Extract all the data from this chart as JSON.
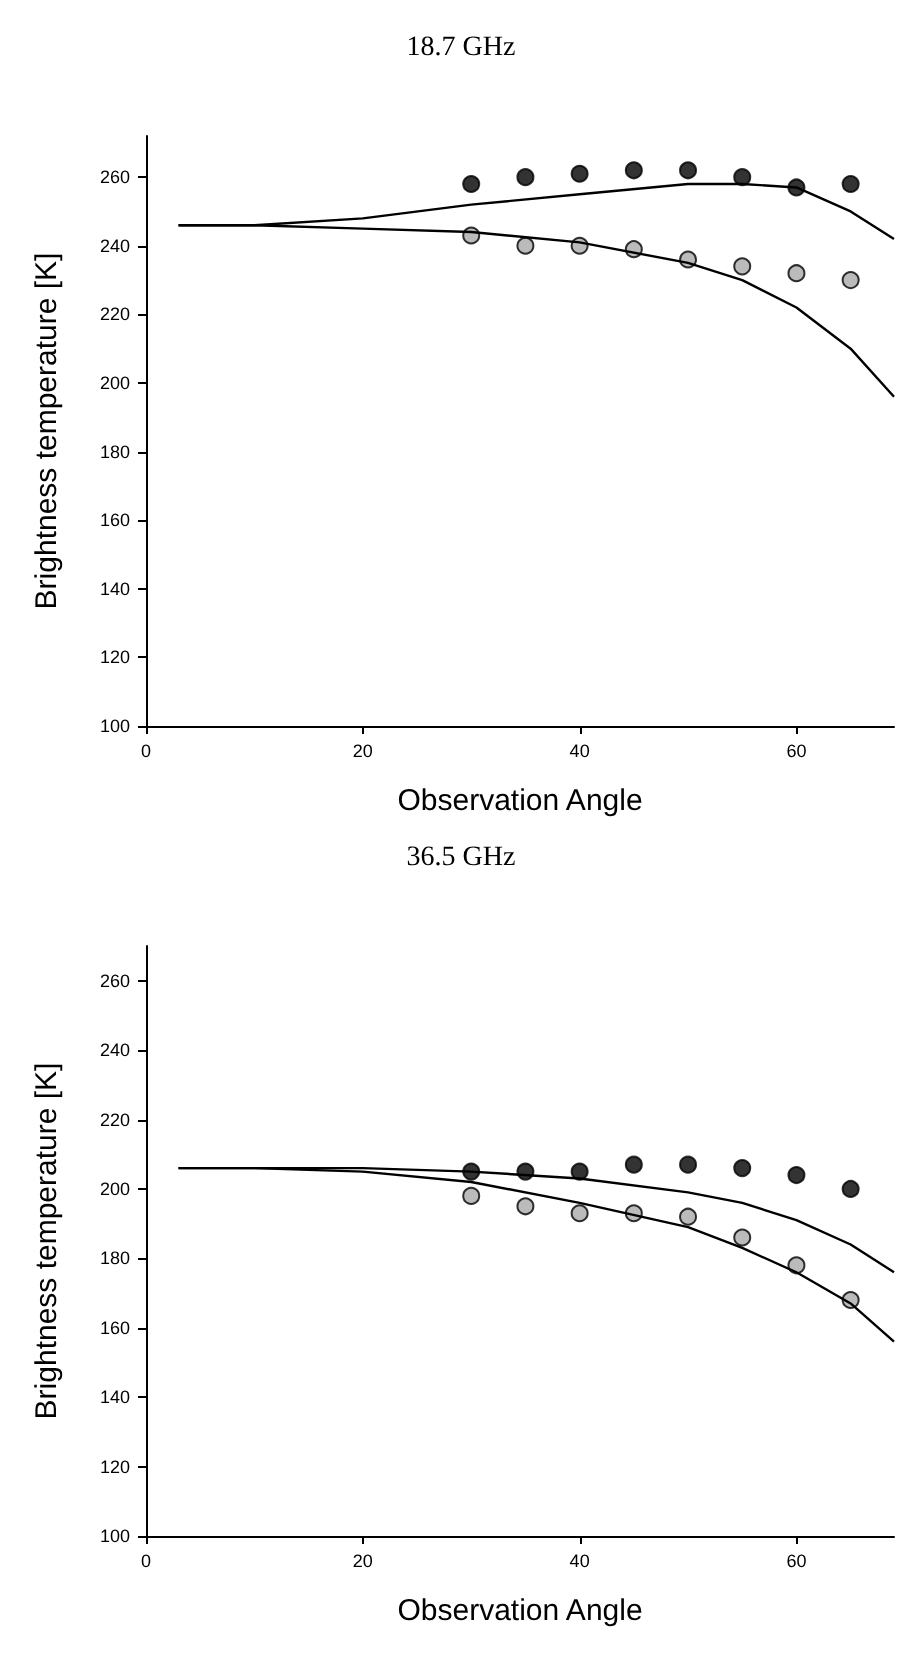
{
  "chart_data": [
    {
      "type": "scatter",
      "title": "18.7 GHz",
      "xlabel": "Observation Angle",
      "ylabel": "Brightness temperature [K]",
      "xlim": [
        0,
        69
      ],
      "xticks": [
        0,
        20,
        40,
        60
      ],
      "ylim": [
        100,
        272
      ],
      "yticks": [
        100,
        120,
        140,
        160,
        180,
        200,
        220,
        240,
        260
      ],
      "grid": false,
      "series": [
        {
          "color": "#000000",
          "marker": "circle",
          "x": [
            30,
            35,
            40,
            45,
            50,
            55,
            60,
            65
          ],
          "values": [
            258,
            260,
            261,
            262,
            262,
            260,
            257,
            258
          ]
        },
        {
          "color": "#aaaaaa",
          "marker": "circle",
          "x": [
            30,
            35,
            40,
            45,
            50,
            55,
            60,
            65
          ],
          "values": [
            243,
            240,
            240,
            239,
            236,
            234,
            232,
            230
          ]
        },
        {
          "type": "line",
          "color": "#000000",
          "marker": "none",
          "x": [
            3,
            10,
            20,
            30,
            40,
            50,
            55,
            60,
            65,
            69
          ],
          "values": [
            246,
            246,
            248,
            252,
            255,
            258,
            258,
            257,
            250,
            242
          ]
        },
        {
          "type": "line",
          "color": "#000000",
          "marker": "none",
          "x": [
            3,
            10,
            20,
            30,
            40,
            50,
            55,
            60,
            65,
            69
          ],
          "values": [
            246,
            246,
            245,
            244,
            241,
            235,
            230,
            222,
            210,
            196
          ]
        }
      ]
    },
    {
      "type": "scatter",
      "title": "36.5 GHz",
      "xlabel": "Observation Angle",
      "ylabel": "Brightness temperature [K]",
      "xlim": [
        0,
        69
      ],
      "xticks": [
        0,
        20,
        40,
        60
      ],
      "ylim": [
        100,
        270
      ],
      "yticks": [
        100,
        120,
        140,
        160,
        180,
        200,
        220,
        240,
        260
      ],
      "grid": false,
      "series": [
        {
          "color": "#000000",
          "marker": "circle",
          "x": [
            30,
            35,
            40,
            45,
            50,
            55,
            60,
            65
          ],
          "values": [
            205,
            205,
            205,
            207,
            207,
            206,
            204,
            200
          ]
        },
        {
          "color": "#aaaaaa",
          "marker": "circle",
          "x": [
            30,
            35,
            40,
            45,
            50,
            55,
            60,
            65
          ],
          "values": [
            198,
            195,
            193,
            193,
            192,
            186,
            178,
            168
          ]
        },
        {
          "type": "line",
          "color": "#000000",
          "marker": "none",
          "x": [
            3,
            10,
            20,
            30,
            40,
            50,
            55,
            60,
            65,
            69
          ],
          "values": [
            206,
            206,
            206,
            205,
            203,
            199,
            196,
            191,
            184,
            176
          ]
        },
        {
          "type": "line",
          "color": "#000000",
          "marker": "none",
          "x": [
            3,
            10,
            20,
            30,
            40,
            50,
            55,
            60,
            65,
            69
          ],
          "values": [
            206,
            206,
            205,
            202,
            196,
            189,
            183,
            176,
            167,
            156
          ]
        }
      ]
    }
  ]
}
